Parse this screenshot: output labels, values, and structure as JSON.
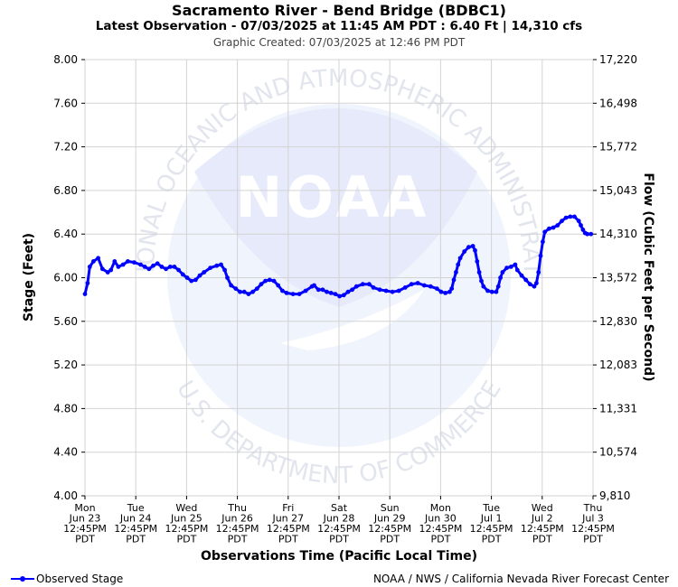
{
  "title": "Sacramento River - Bend Bridge (BDBC1)",
  "subtitle": "Latest Observation - 07/03/2025 at 11:45 AM PDT : 6.40 Ft | 14,310 cfs",
  "created": "Graphic Created: 07/03/2025 at 12:46 PM PDT",
  "legend_label": "Observed Stage",
  "credit": "NOAA / NWS / California Nevada River Forecast Center",
  "watermark": {
    "ring_top": "NATIONAL OCEANIC AND ATMOSPHERIC ADMINISTRATION",
    "ring_bottom": "U.S. DEPARTMENT OF COMMERCE",
    "logo_text": "NOAA"
  },
  "colors": {
    "series": "#0000ff",
    "grid": "#d3d3d3",
    "watermark": "#e8ecfb"
  },
  "chart_data": {
    "type": "line",
    "title": "Sacramento River - Bend Bridge (BDBC1)",
    "xlabel": "Observations Time (Pacific Local Time)",
    "ylabel": "Stage (Feet)",
    "y2label": "Flow (Cubic Feet per Second)",
    "ylim": [
      4.0,
      8.0
    ],
    "y_ticks": [
      "4.00",
      "4.40",
      "4.80",
      "5.20",
      "5.60",
      "6.00",
      "6.40",
      "6.80",
      "7.20",
      "7.60",
      "8.00"
    ],
    "y2_ticks": [
      "9,810",
      "10,574",
      "11,331",
      "12,083",
      "12,830",
      "13,572",
      "14,310",
      "15,043",
      "15,772",
      "16,498",
      "17,220"
    ],
    "x_ticks": [
      [
        "Mon",
        "Jun 23",
        "12:45PM",
        "PDT"
      ],
      [
        "Tue",
        "Jun 24",
        "12:45PM",
        "PDT"
      ],
      [
        "Wed",
        "Jun 25",
        "12:45PM",
        "PDT"
      ],
      [
        "Thu",
        "Jun 26",
        "12:45PM",
        "PDT"
      ],
      [
        "Fri",
        "Jun 27",
        "12:45PM",
        "PDT"
      ],
      [
        "Sat",
        "Jun 28",
        "12:45PM",
        "PDT"
      ],
      [
        "Sun",
        "Jun 29",
        "12:45PM",
        "PDT"
      ],
      [
        "Mon",
        "Jun 30",
        "12:45PM",
        "PDT"
      ],
      [
        "Tue",
        "Jul 1",
        "12:45PM",
        "PDT"
      ],
      [
        "Wed",
        "Jul 2",
        "12:45PM",
        "PDT"
      ],
      [
        "Thu",
        "Jul 3",
        "12:45PM",
        "PDT"
      ]
    ],
    "grid": true,
    "series": [
      {
        "name": "Observed Stage",
        "points": [
          [
            "06/23 12:45",
            5.85
          ],
          [
            "06/23 14:00",
            5.95
          ],
          [
            "06/23 15:00",
            6.1
          ],
          [
            "06/23 16:45",
            6.15
          ],
          [
            "06/23 19:00",
            6.18
          ],
          [
            "06/23 21:00",
            6.08
          ],
          [
            "06/23 23:30",
            6.05
          ],
          [
            "06/24 01:00",
            6.07
          ],
          [
            "06/24 02:45",
            6.15
          ],
          [
            "06/24 04:30",
            6.1
          ],
          [
            "06/24 06:45",
            6.12
          ],
          [
            "06/24 09:00",
            6.15
          ],
          [
            "06/24 12:00",
            6.14
          ],
          [
            "06/24 15:00",
            6.12
          ],
          [
            "06/24 17:00",
            6.1
          ],
          [
            "06/24 19:00",
            6.08
          ],
          [
            "06/24 21:00",
            6.11
          ],
          [
            "06/24 23:00",
            6.13
          ],
          [
            "06/25 01:00",
            6.1
          ],
          [
            "06/25 03:00",
            6.08
          ],
          [
            "06/25 05:00",
            6.1
          ],
          [
            "06/25 07:00",
            6.1
          ],
          [
            "06/25 09:00",
            6.07
          ],
          [
            "06/25 11:00",
            6.03
          ],
          [
            "06/25 13:00",
            6.0
          ],
          [
            "06/25 15:00",
            5.97
          ],
          [
            "06/25 17:00",
            5.98
          ],
          [
            "06/25 19:00",
            6.02
          ],
          [
            "06/25 21:00",
            6.05
          ],
          [
            "06/26 00:00",
            6.09
          ],
          [
            "06/26 03:00",
            6.11
          ],
          [
            "06/26 05:00",
            6.12
          ],
          [
            "06/26 06:45",
            6.07
          ],
          [
            "06/26 08:00",
            6.0
          ],
          [
            "06/26 09:45",
            5.93
          ],
          [
            "06/26 12:00",
            5.9
          ],
          [
            "06/26 14:00",
            5.87
          ],
          [
            "06/26 16:00",
            5.87
          ],
          [
            "06/26 18:00",
            5.85
          ],
          [
            "06/26 20:00",
            5.87
          ],
          [
            "06/26 22:00",
            5.9
          ],
          [
            "06/27 00:00",
            5.94
          ],
          [
            "06/27 02:00",
            5.97
          ],
          [
            "06/27 04:00",
            5.98
          ],
          [
            "06/27 06:00",
            5.97
          ],
          [
            "06/27 08:00",
            5.93
          ],
          [
            "06/27 10:00",
            5.88
          ],
          [
            "06/27 12:00",
            5.86
          ],
          [
            "06/27 15:00",
            5.85
          ],
          [
            "06/27 18:00",
            5.85
          ],
          [
            "06/27 21:00",
            5.88
          ],
          [
            "06/28 00:00",
            5.92
          ],
          [
            "06/28 01:00",
            5.93
          ],
          [
            "06/28 03:00",
            5.89
          ],
          [
            "06/28 05:00",
            5.89
          ],
          [
            "06/28 07:00",
            5.87
          ],
          [
            "06/28 09:00",
            5.86
          ],
          [
            "06/28 11:00",
            5.85
          ],
          [
            "06/28 13:00",
            5.83
          ],
          [
            "06/28 15:00",
            5.84
          ],
          [
            "06/28 17:00",
            5.87
          ],
          [
            "06/28 19:00",
            5.89
          ],
          [
            "06/28 21:00",
            5.92
          ],
          [
            "06/29 00:00",
            5.94
          ],
          [
            "06/29 03:00",
            5.94
          ],
          [
            "06/29 05:00",
            5.91
          ],
          [
            "06/29 08:00",
            5.89
          ],
          [
            "06/29 11:00",
            5.88
          ],
          [
            "06/29 14:00",
            5.87
          ],
          [
            "06/29 17:00",
            5.88
          ],
          [
            "06/29 20:00",
            5.91
          ],
          [
            "06/29 23:00",
            5.94
          ],
          [
            "06/30 02:00",
            5.95
          ],
          [
            "06/30 05:00",
            5.93
          ],
          [
            "06/30 08:00",
            5.92
          ],
          [
            "06/30 11:00",
            5.9
          ],
          [
            "06/30 13:00",
            5.87
          ],
          [
            "06/30 15:00",
            5.86
          ],
          [
            "06/30 17:00",
            5.87
          ],
          [
            "06/30 18:00",
            5.9
          ],
          [
            "06/30 19:00",
            5.98
          ],
          [
            "06/30 20:00",
            6.05
          ],
          [
            "06/30 21:00",
            6.12
          ],
          [
            "06/30 22:00",
            6.18
          ],
          [
            "07/01 00:00",
            6.24
          ],
          [
            "07/01 02:00",
            6.28
          ],
          [
            "07/01 04:00",
            6.29
          ],
          [
            "07/01 05:00",
            6.25
          ],
          [
            "07/01 06:00",
            6.15
          ],
          [
            "07/01 07:00",
            6.05
          ],
          [
            "07/01 08:00",
            5.97
          ],
          [
            "07/01 09:00",
            5.92
          ],
          [
            "07/01 11:00",
            5.88
          ],
          [
            "07/01 13:00",
            5.87
          ],
          [
            "07/01 15:00",
            5.87
          ],
          [
            "07/01 16:00",
            5.92
          ],
          [
            "07/01 17:00",
            6.0
          ],
          [
            "07/01 18:00",
            6.05
          ],
          [
            "07/01 20:00",
            6.09
          ],
          [
            "07/01 22:00",
            6.1
          ],
          [
            "07/02 00:00",
            6.12
          ],
          [
            "07/02 01:00",
            6.07
          ],
          [
            "07/02 03:00",
            6.02
          ],
          [
            "07/02 05:00",
            5.98
          ],
          [
            "07/02 07:00",
            5.94
          ],
          [
            "07/02 09:00",
            5.92
          ],
          [
            "07/02 10:00",
            5.95
          ],
          [
            "07/02 11:00",
            6.05
          ],
          [
            "07/02 12:00",
            6.2
          ],
          [
            "07/02 13:00",
            6.33
          ],
          [
            "07/02 14:00",
            6.42
          ],
          [
            "07/02 16:00",
            6.45
          ],
          [
            "07/02 18:00",
            6.46
          ],
          [
            "07/02 20:00",
            6.48
          ],
          [
            "07/02 22:00",
            6.52
          ],
          [
            "07/03 00:00",
            6.55
          ],
          [
            "07/03 02:00",
            6.56
          ],
          [
            "07/03 04:00",
            6.56
          ],
          [
            "07/03 06:00",
            6.52
          ],
          [
            "07/03 07:00",
            6.48
          ],
          [
            "07/03 08:00",
            6.44
          ],
          [
            "07/03 09:00",
            6.41
          ],
          [
            "07/03 10:00",
            6.4
          ],
          [
            "07/03 11:45",
            6.4
          ]
        ]
      }
    ]
  }
}
